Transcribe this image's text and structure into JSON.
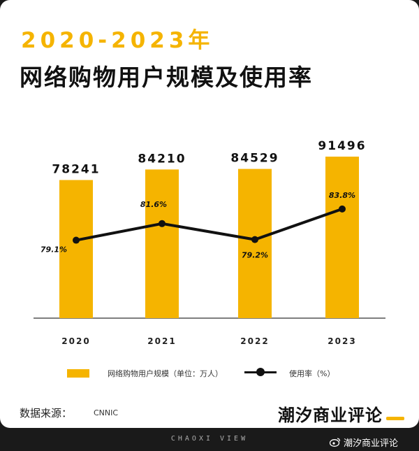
{
  "header": {
    "title_line1": "2020-2023年",
    "title_line2": "网络购物用户规模及使用率"
  },
  "colors": {
    "accent": "#f5b400",
    "line": "#111111",
    "background": "#ffffff"
  },
  "chart_data": {
    "type": "bar",
    "categories": [
      "2020",
      "2021",
      "2022",
      "2023"
    ],
    "series": [
      {
        "name": "网络购物用户规模（单位：万人）",
        "type": "bar",
        "values": [
          78241,
          84210,
          84529,
          91496
        ],
        "labels": [
          "78241",
          "84210",
          "84529",
          "91496"
        ]
      },
      {
        "name": "使用率（%）",
        "type": "line",
        "values": [
          79.1,
          81.6,
          79.2,
          83.8
        ],
        "labels": [
          "79.1%",
          "81.6%",
          "79.2%",
          "83.8%"
        ]
      }
    ],
    "ylim_bar": [
      0,
      101000
    ],
    "ylim_line": [
      70,
      90
    ],
    "grid": false,
    "legend_position": "bottom"
  },
  "legend": {
    "bar_label": "网络购物用户规模（单位：万人）",
    "line_label": "使用率（%）"
  },
  "footer": {
    "source_label": "数据来源：",
    "source_value": "CNNIC",
    "brand": "潮汐商业评论",
    "brand_en": "CHAOXI VIEW",
    "watermark": "潮汐商业评论",
    "watermark_icon": "weibo-icon"
  }
}
